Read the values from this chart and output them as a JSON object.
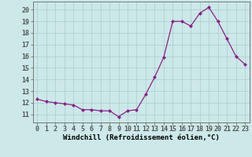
{
  "x": [
    0,
    1,
    2,
    3,
    4,
    5,
    6,
    7,
    8,
    9,
    10,
    11,
    12,
    13,
    14,
    15,
    16,
    17,
    18,
    19,
    20,
    21,
    22,
    23
  ],
  "y": [
    12.3,
    12.1,
    12.0,
    11.9,
    11.8,
    11.4,
    11.4,
    11.3,
    11.3,
    10.8,
    11.3,
    11.4,
    12.7,
    14.2,
    15.9,
    19.0,
    19.0,
    18.6,
    19.7,
    20.2,
    19.0,
    17.5,
    16.0,
    15.3
  ],
  "line_color": "#882288",
  "marker": "D",
  "markersize": 2.0,
  "linewidth": 0.9,
  "bg_color": "#cce8e8",
  "grid_color": "#aacccc",
  "xlabel": "Windchill (Refroidissement éolien,°C)",
  "xlabel_fontsize": 6.5,
  "tick_fontsize": 6.0,
  "ylim": [
    10.3,
    20.7
  ],
  "xlim": [
    -0.5,
    23.5
  ],
  "yticks": [
    11,
    12,
    13,
    14,
    15,
    16,
    17,
    18,
    19,
    20
  ],
  "xticks": [
    0,
    1,
    2,
    3,
    4,
    5,
    6,
    7,
    8,
    9,
    10,
    11,
    12,
    13,
    14,
    15,
    16,
    17,
    18,
    19,
    20,
    21,
    22,
    23
  ]
}
